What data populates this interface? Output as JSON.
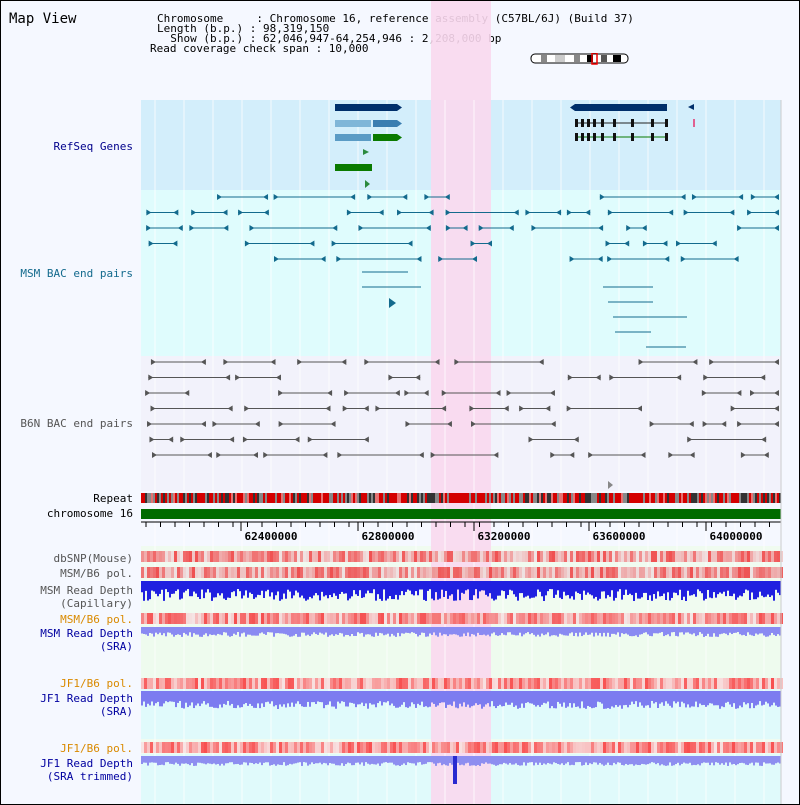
{
  "title": "Map View",
  "header": {
    "l1": "Chromosome     : Chromosome 16, reference assembly (C57BL/6J) (Build 37)",
    "l2": "Length (b.p.) : 98,319,150",
    "l3": "  Show (b.p.) : 62,046,947-64,254,946 : 2,208,000 bp",
    "l4": "Read coverage check span : 10,000"
  },
  "tracks": {
    "refseq": "RefSeq Genes",
    "msm_bac": "MSM BAC end pairs",
    "b6n_bac": "B6N BAC end pairs",
    "repeat": "Repeat",
    "chrom": "chromosome 16",
    "dbsnp": "dbSNP(Mouse)",
    "msm_b6_pol": "MSM/B6 pol.",
    "msm_depth_cap_1": "MSM Read Depth",
    "msm_depth_cap_2": "(Capillary)",
    "msm_b6_pol2": "MSM/B6 pol.",
    "msm_depth_sra_1": "MSM Read Depth",
    "msm_depth_sra_2": "(SRA)",
    "jf1_b6_pol": "JF1/B6 pol.",
    "jf1_depth_sra_1": "JF1 Read Depth",
    "jf1_depth_sra_2": "(SRA)",
    "jf1_b6_pol2": "JF1/B6 pol.",
    "jf1_depth_trim_1": "JF1 Read Depth",
    "jf1_depth_trim_2": "(SRA trimmed)"
  },
  "axis": {
    "ticks": [
      "62400000",
      "62800000",
      "63200000",
      "63600000",
      "64000000"
    ]
  },
  "colors": {
    "highlight": "#f9d8ee",
    "refseq_bg": "#d3eefb",
    "msm_bg": "#dffcfd",
    "gene_dark": "#002f6b",
    "gene_mid": "#3a7db0",
    "gene_green": "#0a7a00",
    "msm_line": "#136a8d",
    "b6n_line": "#555555",
    "chrom": "#006b00",
    "snp": "#f27b7b",
    "depth_blue": "#2020e0",
    "depth_light": "#7c7cf0",
    "jf1_label": "#d98a00",
    "dark_label": "#0000a0"
  }
}
